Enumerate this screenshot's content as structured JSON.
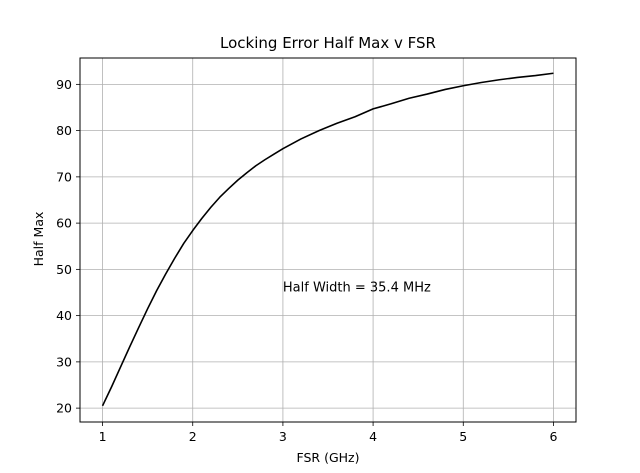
{
  "chart_data": {
    "type": "line",
    "title": "Locking Error Half Max v FSR",
    "xlabel": "FSR (GHz)",
    "ylabel": "Half Max",
    "xlim": [
      0.75,
      6.25
    ],
    "ylim": [
      17,
      95.7
    ],
    "xticks": [
      1,
      2,
      3,
      4,
      5,
      6
    ],
    "yticks": [
      20,
      30,
      40,
      50,
      60,
      70,
      80,
      90
    ],
    "grid": true,
    "annotation": "Half Width = 35.4 MHz",
    "annotation_pos": {
      "x": 3.0,
      "y": 45.2
    },
    "series": [
      {
        "color": "#000000",
        "x": [
          1.0,
          1.1,
          1.2,
          1.3,
          1.4,
          1.5,
          1.6,
          1.7,
          1.8,
          1.9,
          2.0,
          2.1,
          2.2,
          2.3,
          2.4,
          2.5,
          2.6,
          2.7,
          2.8,
          2.9,
          3.0,
          3.2,
          3.4,
          3.6,
          3.8,
          4.0,
          4.2,
          4.4,
          4.6,
          4.8,
          5.0,
          5.2,
          5.4,
          5.6,
          5.8,
          6.0
        ],
        "y": [
          20.5,
          24.6,
          28.9,
          33.2,
          37.4,
          41.5,
          45.4,
          49.0,
          52.4,
          55.6,
          58.4,
          61.0,
          63.4,
          65.6,
          67.5,
          69.3,
          70.9,
          72.4,
          73.7,
          74.9,
          76.1,
          78.2,
          80.0,
          81.6,
          83.0,
          84.7,
          85.8,
          87.0,
          87.9,
          88.9,
          89.7,
          90.4,
          91.0,
          91.5,
          91.9,
          92.4
        ]
      }
    ]
  }
}
